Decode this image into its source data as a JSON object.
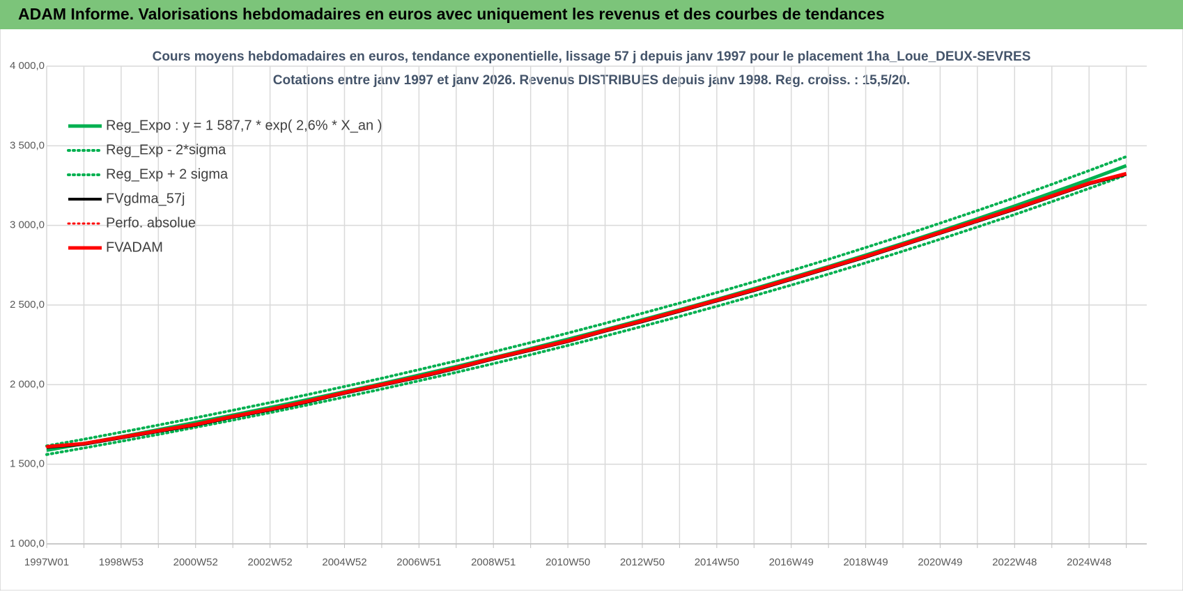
{
  "header": {
    "title": "ADAM Informe. Valorisations hebdomadaires en euros avec uniquement les revenus et des courbes de tendances"
  },
  "chart_data": {
    "type": "line",
    "title": "Cours moyens hebdomadaires en euros, tendance exponentielle, lissage 57 j depuis janv 1997  pour le placement 1ha_Loue_DEUX-SEVRES",
    "subtitle": "Cotations entre janv 1997 et janv 2026. Revenus DISTRIBUES depuis janv 1998.  Reg. croiss. : 15,5/20.",
    "categories": [
      "1997W01",
      null,
      "1998W53",
      null,
      "2000W52",
      null,
      "2002W52",
      null,
      "2004W52",
      null,
      "2006W51",
      null,
      "2008W51",
      null,
      "2010W50",
      null,
      "2012W50",
      null,
      "2014W50",
      null,
      "2016W49",
      null,
      "2018W49",
      null,
      "2020W49",
      null,
      "2022W48",
      null,
      "2024W48",
      null
    ],
    "ylim": [
      1000,
      4000
    ],
    "yticks": [
      {
        "value": 1000,
        "label": "1 000,0"
      },
      {
        "value": 1500,
        "label": "1 500,0"
      },
      {
        "value": 2000,
        "label": "2 000,0"
      },
      {
        "value": 2500,
        "label": "2 500,0"
      },
      {
        "value": 3000,
        "label": "3 000,0"
      },
      {
        "value": 3500,
        "label": "3 500,0"
      },
      {
        "value": 4000,
        "label": "4 000,0"
      }
    ],
    "grid": true,
    "legend": "top-left",
    "series": [
      {
        "name": "Reg_Expo : y = 1 587,7 * exp( 2,6% *  X_an )",
        "color": "#00b050",
        "dash": "solid",
        "width": 5,
        "values": [
          1588,
          1630,
          1672,
          1717,
          1762,
          1808,
          1856,
          1905,
          1955,
          2006,
          2059,
          2113,
          2169,
          2226,
          2285,
          2345,
          2407,
          2470,
          2535,
          2602,
          2671,
          2741,
          2813,
          2887,
          2963,
          3041,
          3121,
          3204,
          3288,
          3375
        ]
      },
      {
        "name": "Reg_Exp - 2*sigma",
        "color": "#00b050",
        "dash": "dotted",
        "width": 4,
        "values": [
          1561,
          1602,
          1644,
          1687,
          1732,
          1777,
          1824,
          1872,
          1922,
          1972,
          2024,
          2077,
          2132,
          2188,
          2246,
          2305,
          2366,
          2428,
          2492,
          2558,
          2625,
          2694,
          2765,
          2838,
          2913,
          2990,
          3068,
          3149,
          3232,
          3317
        ]
      },
      {
        "name": "Reg_Exp + 2 sigma",
        "color": "#00b050",
        "dash": "dotted",
        "width": 4,
        "values": [
          1615,
          1657,
          1701,
          1746,
          1792,
          1839,
          1887,
          1937,
          1988,
          2040,
          2094,
          2149,
          2206,
          2264,
          2324,
          2385,
          2448,
          2512,
          2578,
          2646,
          2716,
          2787,
          2861,
          2936,
          3014,
          3093,
          3174,
          3258,
          3344,
          3432
        ]
      },
      {
        "name": "FVgdma_57j",
        "color": "#000000",
        "dash": "solid",
        "width": 4,
        "values": [
          1605,
          1625,
          1665,
          1705,
          1745,
          1795,
          1840,
          1890,
          1945,
          1995,
          2045,
          2100,
          2160,
          2215,
          2270,
          2335,
          2395,
          2460,
          2525,
          2590,
          2660,
          2730,
          2800,
          2875,
          2950,
          3025,
          3100,
          3180,
          3260,
          3320
        ]
      },
      {
        "name": "Perfo. absolue",
        "color": "#ff0000",
        "dash": "dotted",
        "width": 3,
        "values": [
          1610,
          1630,
          1670,
          1710,
          1750,
          1800,
          1845,
          1895,
          1950,
          2000,
          2050,
          2105,
          2165,
          2220,
          2275,
          2340,
          2400,
          2465,
          2530,
          2595,
          2665,
          2735,
          2805,
          2880,
          2955,
          3030,
          3105,
          3185,
          3265,
          3325
        ]
      },
      {
        "name": "FVADAM",
        "color": "#ff0000",
        "dash": "solid",
        "width": 5,
        "values": [
          1610,
          1630,
          1670,
          1710,
          1750,
          1800,
          1845,
          1895,
          1950,
          2000,
          2050,
          2105,
          2165,
          2220,
          2275,
          2340,
          2400,
          2465,
          2530,
          2595,
          2665,
          2735,
          2805,
          2880,
          2955,
          3030,
          3105,
          3185,
          3265,
          3325
        ]
      }
    ]
  }
}
